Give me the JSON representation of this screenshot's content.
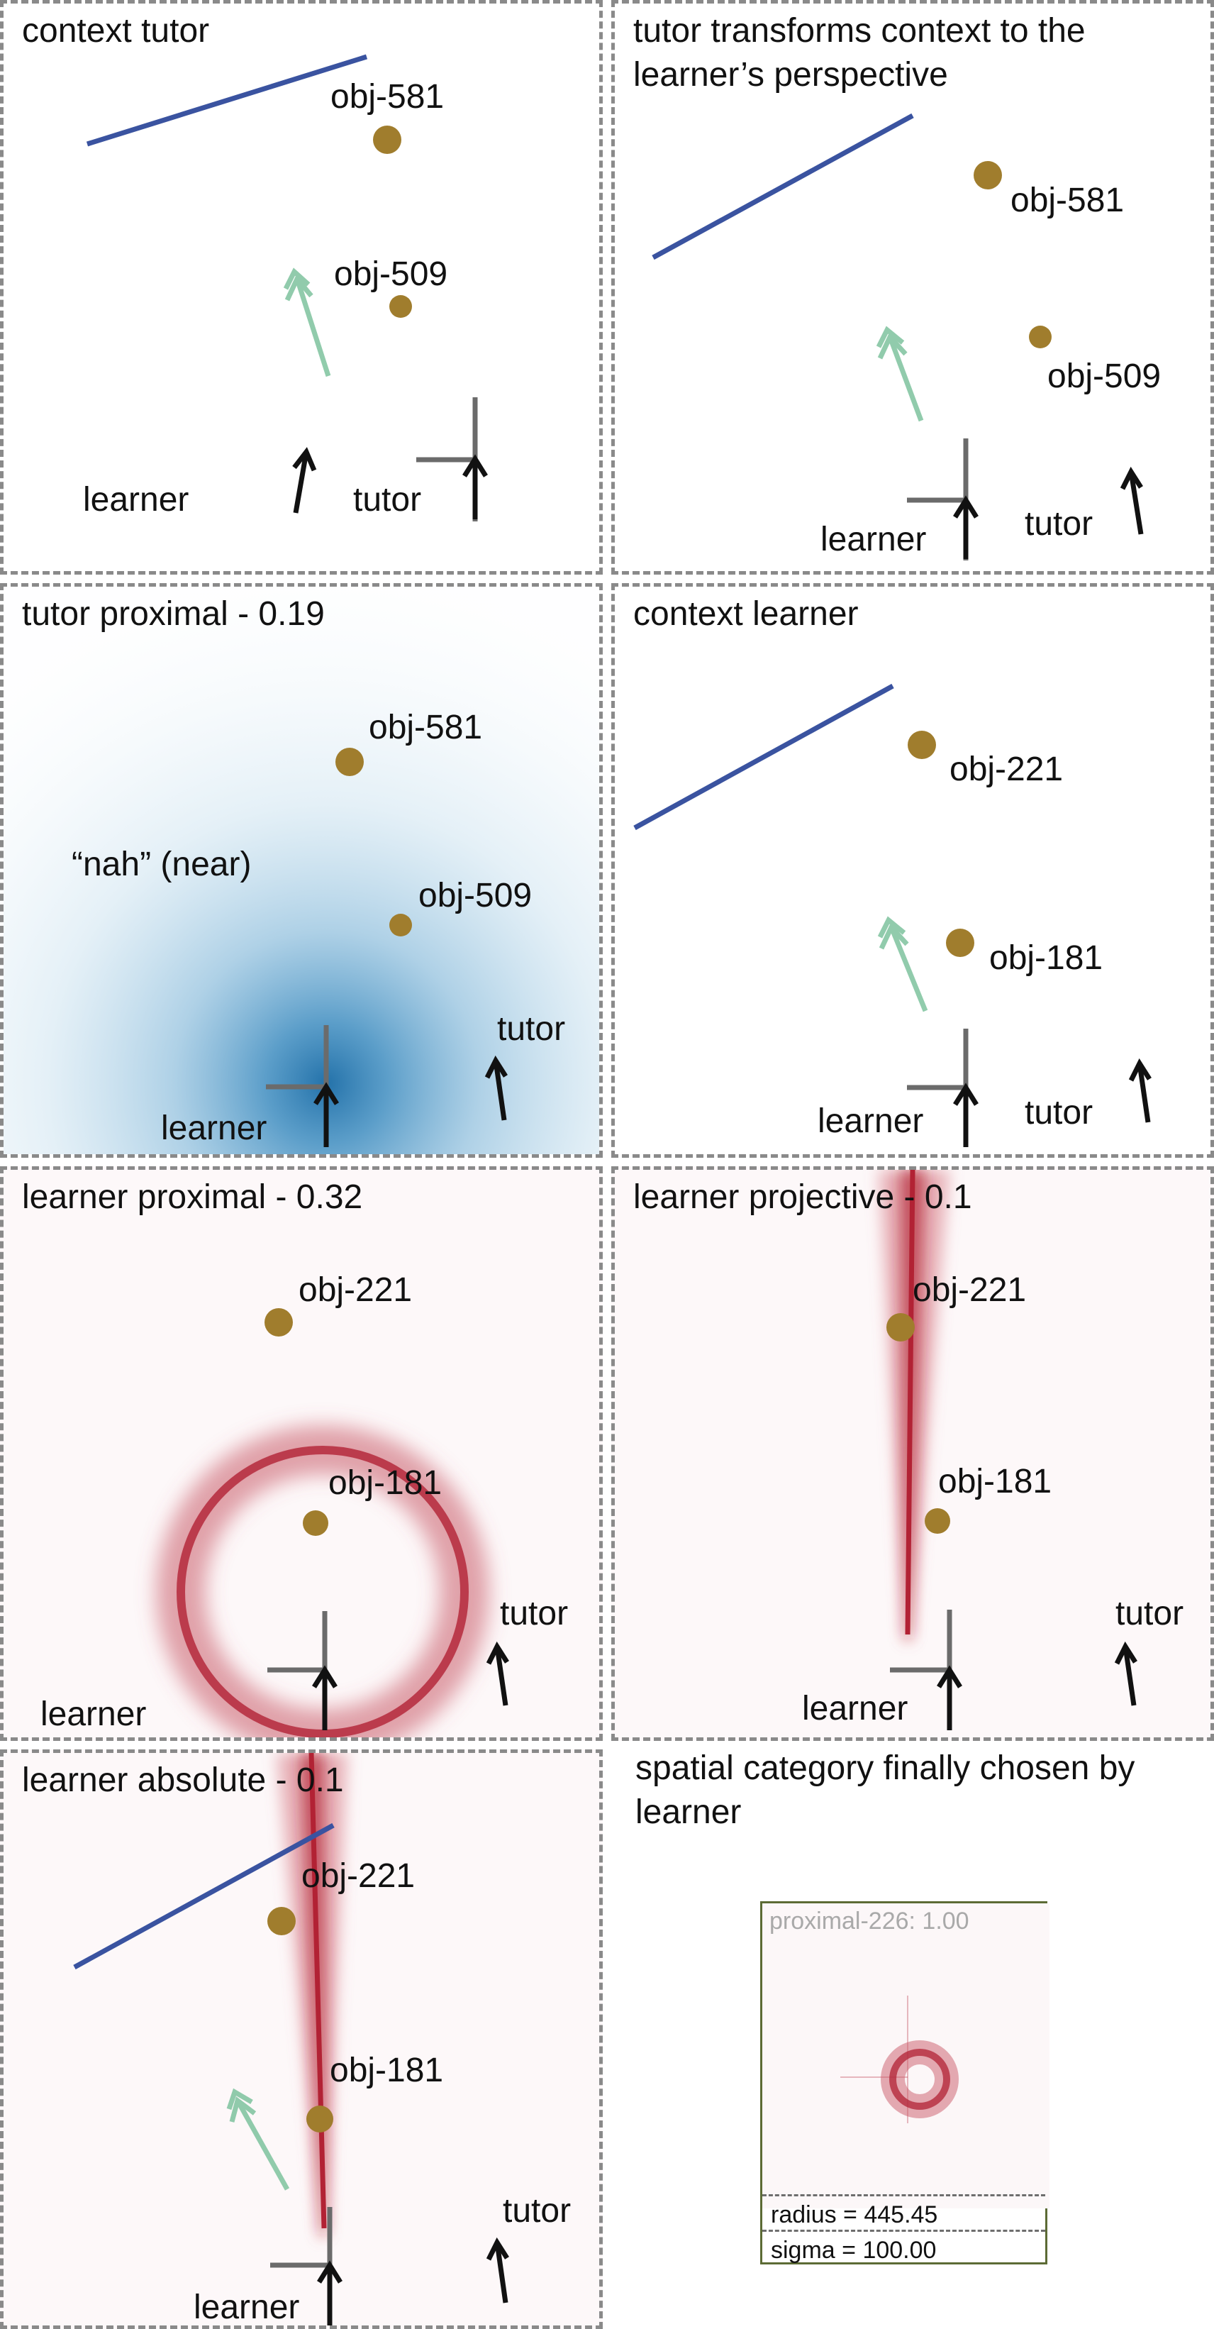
{
  "panels": [
    {
      "id": "context-tutor",
      "title": "context tutor",
      "background": "none",
      "objects": [
        {
          "label": "obj-581",
          "color": "#a07d2d"
        },
        {
          "label": "obj-509",
          "color": "#a07d2d"
        }
      ],
      "agents": [
        "learner",
        "tutor"
      ],
      "pointing_arrow": true,
      "landmark_line": true
    },
    {
      "id": "tutor-transforms",
      "title": "tutor transforms context to the learner’s perspective",
      "background": "none",
      "objects": [
        {
          "label": "obj-581",
          "color": "#a07d2d"
        },
        {
          "label": "obj-509",
          "color": "#a07d2d"
        }
      ],
      "agents": [
        "learner",
        "tutor"
      ],
      "pointing_arrow": true,
      "landmark_line": true
    },
    {
      "id": "tutor-proximal",
      "title": "tutor proximal - 0.19",
      "background": "blue-proximal",
      "utterance": "“nah” (near)",
      "objects": [
        {
          "label": "obj-581",
          "color": "#a07d2d"
        },
        {
          "label": "obj-509",
          "color": "#a07d2d"
        }
      ],
      "agents": [
        "learner",
        "tutor"
      ]
    },
    {
      "id": "context-learner",
      "title": "context learner",
      "background": "none",
      "objects": [
        {
          "label": "obj-221",
          "color": "#a07d2d"
        },
        {
          "label": "obj-181",
          "color": "#a07d2d"
        }
      ],
      "agents": [
        "learner",
        "tutor"
      ],
      "pointing_arrow": true,
      "landmark_line": true
    },
    {
      "id": "learner-proximal",
      "title": "learner proximal - 0.32",
      "background": "red-ring",
      "objects": [
        {
          "label": "obj-221",
          "color": "#a07d2d"
        },
        {
          "label": "obj-181",
          "color": "#a07d2d"
        }
      ],
      "agents": [
        "learner",
        "tutor"
      ]
    },
    {
      "id": "learner-projective",
      "title": "learner projective - 0.1",
      "background": "red-beam",
      "objects": [
        {
          "label": "obj-221",
          "color": "#a07d2d"
        },
        {
          "label": "obj-181",
          "color": "#a07d2d"
        }
      ],
      "agents": [
        "learner",
        "tutor"
      ]
    },
    {
      "id": "learner-absolute",
      "title": "learner absolute - 0.1",
      "background": "red-beam",
      "objects": [
        {
          "label": "obj-221",
          "color": "#a07d2d"
        },
        {
          "label": "obj-181",
          "color": "#a07d2d"
        }
      ],
      "agents": [
        "learner",
        "tutor"
      ],
      "pointing_arrow": true,
      "landmark_line": true
    }
  ],
  "final_category": {
    "title": "spatial category finally chosen by learner",
    "category_label": "proximal-226: 1.00",
    "radius_label": "radius = 445.45",
    "sigma_label": "sigma = 100.00"
  },
  "colors": {
    "object": "#a07d2d",
    "landmark_line": "#3a53a0",
    "pointing_arrow": "#7ec39e",
    "agent_arrow": "#111111",
    "axis_cross": "#6b6b6b",
    "proximal_blue": "#1f77b4",
    "category_red": "#b22234",
    "panel_border": "#8a8a8a"
  }
}
